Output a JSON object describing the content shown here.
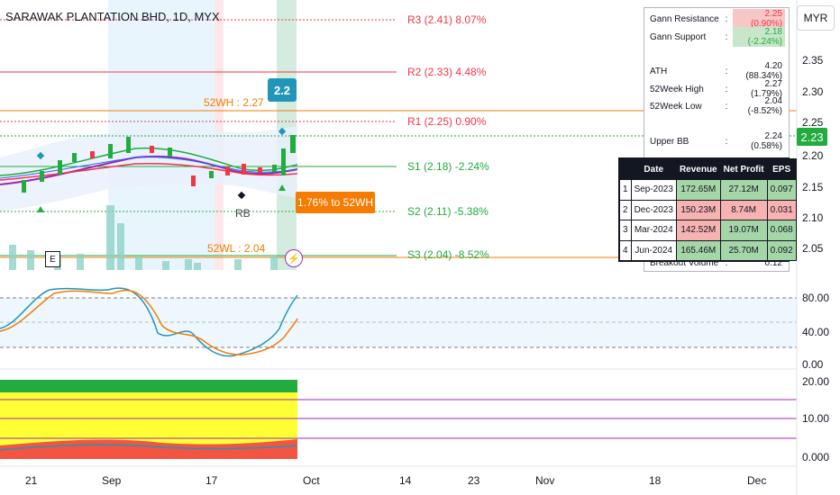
{
  "header": {
    "title": "SARAWAK PLANTATION BHD, 1D, MYX"
  },
  "currency_button": "MYR",
  "current_price": "2.23",
  "levels": {
    "r3": "R3 (2.41) 8.07%",
    "r2": "R2 (2.33) 4.48%",
    "r1": "R1 (2.25) 0.90%",
    "s1": "S1 (2.18) -2.24%",
    "s2": "S2 (2.11) -5.38%",
    "s3": "S3 (2.04) -8.52%",
    "wh52": "52WH : 2.27",
    "wl52": "52WL : 2.04"
  },
  "annotations": {
    "high_bubble": "2.2",
    "to_52wh": "1.76% to 52WH",
    "rb": "RB",
    "e_badge": "E"
  },
  "price_axis": [
    "2.35",
    "2.30",
    "2.25",
    "2.20",
    "2.15",
    "2.10",
    "2.05"
  ],
  "osc_axis": [
    "80.00",
    "40.00",
    "0.00"
  ],
  "vol_axis": [
    "20.00",
    "10.00",
    "0.000"
  ],
  "time_axis": [
    "21",
    "Sep",
    "17",
    "Oct",
    "14",
    "23",
    "Nov",
    "18",
    "Dec"
  ],
  "gann_box": {
    "rows": [
      {
        "k": "Gann Resistance",
        "v": "2.25 (0.90%)"
      },
      {
        "k": "Gann Support",
        "v": "2.18 (-2.24%)"
      },
      {
        "k": "ATH",
        "v": "4.20 (88.34%)"
      },
      {
        "k": "52Week High",
        "v": "2.27 (1.79%)"
      },
      {
        "k": "52Week Low",
        "v": "2.04 (-8.52%)"
      },
      {
        "k": "Upper BB",
        "v": "2.24 (0.58%)"
      },
      {
        "k": "Breakout Volume",
        "v": "0.12"
      }
    ],
    "colon": ":"
  },
  "financials": {
    "headers": [
      "",
      "Date",
      "Revenue",
      "Net Profit",
      "EPS"
    ],
    "rows": [
      {
        "n": "1",
        "date": "Sep-2023",
        "rev": "172.65M",
        "np": "27.12M",
        "eps": "0.097"
      },
      {
        "n": "2",
        "date": "Dec-2023",
        "rev": "150.23M",
        "np": "8.74M",
        "eps": "0.031"
      },
      {
        "n": "3",
        "date": "Mar-2024",
        "rev": "142.52M",
        "np": "19.07M",
        "eps": "0.068"
      },
      {
        "n": "4",
        "date": "Jun-2024",
        "rev": "165.46M",
        "np": "25.70M",
        "eps": "0.092"
      }
    ]
  },
  "colors": {
    "up": "#22ab3f",
    "down": "#f23645",
    "accent": "#2196b8",
    "orange": "#f57c00",
    "purple": "#9c27b0"
  }
}
